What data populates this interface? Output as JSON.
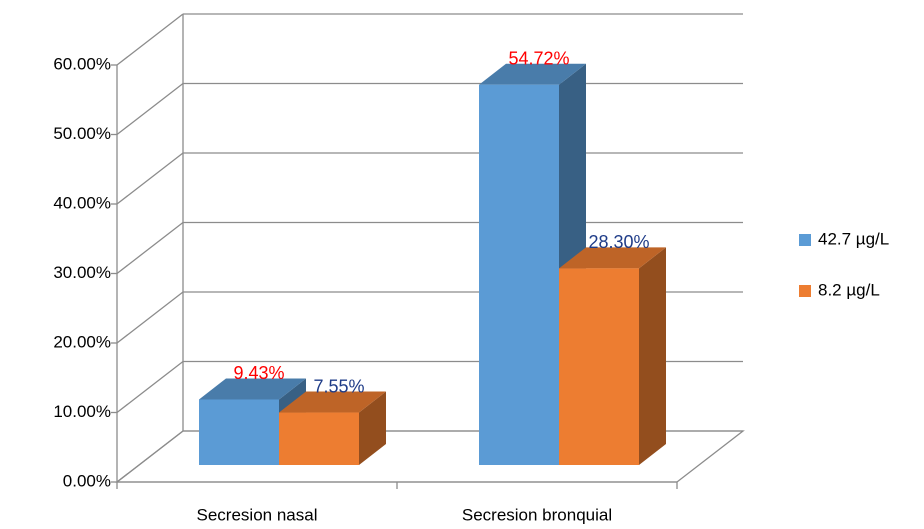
{
  "chart_data": {
    "type": "bar3d",
    "categories": [
      "Secresion nasal",
      "Secresion bronquial"
    ],
    "series": [
      {
        "name": "42.7 µg/L",
        "color": "#5b9bd5",
        "label_color": "#ff0000",
        "values": [
          9.43,
          54.72
        ],
        "value_labels": [
          "9.43%",
          "54.72%"
        ]
      },
      {
        "name": "8.2 µg/L",
        "color": "#ed7d31",
        "label_color": "#1f3c88",
        "values": [
          7.55,
          28.3
        ],
        "value_labels": [
          "7.55%",
          "28.30%"
        ]
      }
    ],
    "ylim": [
      0,
      60
    ],
    "yticks": [
      {
        "value": 0,
        "label": "0.00%"
      },
      {
        "value": 10,
        "label": "10.00%"
      },
      {
        "value": 20,
        "label": "20.00%"
      },
      {
        "value": 30,
        "label": "30.00%"
      },
      {
        "value": 40,
        "label": "40.00%"
      },
      {
        "value": 50,
        "label": "50.00%"
      },
      {
        "value": 60,
        "label": "60.00%"
      }
    ],
    "grid": true,
    "legend": "right"
  }
}
